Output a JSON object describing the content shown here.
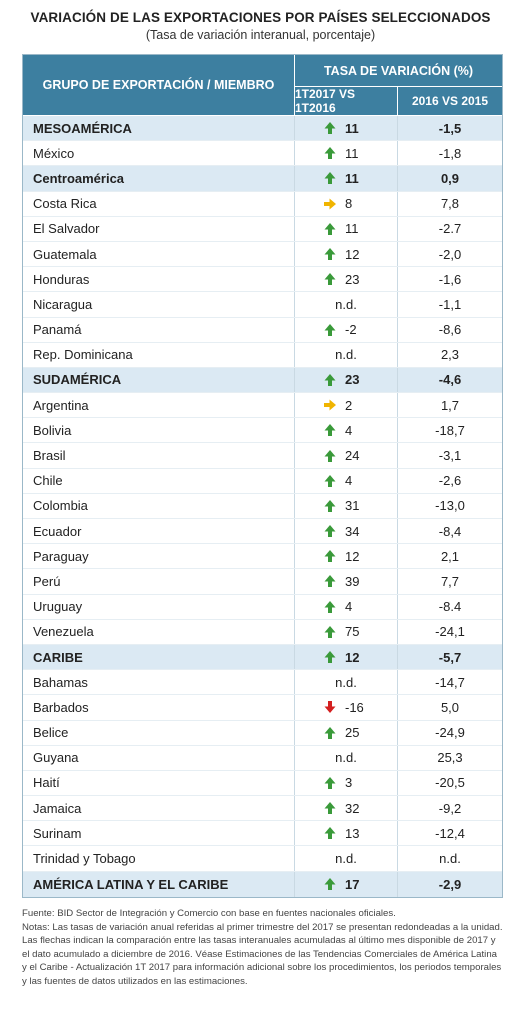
{
  "title": "VARIACIÓN DE LAS EXPORTACIONES POR PAÍSES SELECCIONADOS",
  "subtitle": "(Tasa de variación interanual, porcentaje)",
  "header": {
    "group_label": "GRUPO DE EXPORTACIÓN / MIEMBRO",
    "rate_label": "TASA DE VARIACIÓN (%)",
    "col1_label": "1T2017 VS 1T2016",
    "col2_label": "2016 VS 2015"
  },
  "colors": {
    "up": "#3a9a3a",
    "side": "#f0b400",
    "down": "#d42020",
    "header_bg": "#3d7fa0",
    "group_bg": "#dbe9f3"
  },
  "rows": [
    {
      "name": "MESOAMÉRICA",
      "group": true,
      "arrow": "up",
      "v1": "11",
      "v2": "-1,5"
    },
    {
      "name": "México",
      "group": false,
      "arrow": "up",
      "v1": "11",
      "v2": "-1,8"
    },
    {
      "name": "Centroamérica",
      "group": true,
      "arrow": "up",
      "v1": "11",
      "v2": "0,9"
    },
    {
      "name": "Costa Rica",
      "group": false,
      "arrow": "side",
      "v1": "8",
      "v2": "7,8"
    },
    {
      "name": "El Salvador",
      "group": false,
      "arrow": "up",
      "v1": "11",
      "v2": "-2.7"
    },
    {
      "name": "Guatemala",
      "group": false,
      "arrow": "up",
      "v1": "12",
      "v2": "-2,0"
    },
    {
      "name": "Honduras",
      "group": false,
      "arrow": "up",
      "v1": "23",
      "v2": "-1,6"
    },
    {
      "name": "Nicaragua",
      "group": false,
      "arrow": "none",
      "v1": "n.d.",
      "v2": "-1,1"
    },
    {
      "name": "Panamá",
      "group": false,
      "arrow": "up",
      "v1": "-2",
      "v2": "-8,6"
    },
    {
      "name": "Rep. Dominicana",
      "group": false,
      "arrow": "none",
      "v1": "n.d.",
      "v2": "2,3"
    },
    {
      "name": "SUDAMÉRICA",
      "group": true,
      "arrow": "up",
      "v1": "23",
      "v2": "-4,6"
    },
    {
      "name": "Argentina",
      "group": false,
      "arrow": "side",
      "v1": "2",
      "v2": "1,7"
    },
    {
      "name": "Bolivia",
      "group": false,
      "arrow": "up",
      "v1": "4",
      "v2": "-18,7"
    },
    {
      "name": "Brasil",
      "group": false,
      "arrow": "up",
      "v1": "24",
      "v2": "-3,1"
    },
    {
      "name": "Chile",
      "group": false,
      "arrow": "up",
      "v1": "4",
      "v2": "-2,6"
    },
    {
      "name": "Colombia",
      "group": false,
      "arrow": "up",
      "v1": "31",
      "v2": "-13,0"
    },
    {
      "name": "Ecuador",
      "group": false,
      "arrow": "up",
      "v1": "34",
      "v2": "-8,4"
    },
    {
      "name": "Paraguay",
      "group": false,
      "arrow": "up",
      "v1": "12",
      "v2": "2,1"
    },
    {
      "name": "Perú",
      "group": false,
      "arrow": "up",
      "v1": "39",
      "v2": "7,7"
    },
    {
      "name": "Uruguay",
      "group": false,
      "arrow": "up",
      "v1": "4",
      "v2": "-8.4"
    },
    {
      "name": "Venezuela",
      "group": false,
      "arrow": "up",
      "v1": "75",
      "v2": "-24,1"
    },
    {
      "name": "CARIBE",
      "group": true,
      "arrow": "up",
      "v1": "12",
      "v2": "-5,7"
    },
    {
      "name": "Bahamas",
      "group": false,
      "arrow": "none",
      "v1": "n.d.",
      "v2": "-14,7"
    },
    {
      "name": "Barbados",
      "group": false,
      "arrow": "down",
      "v1": "-16",
      "v2": "5,0"
    },
    {
      "name": "Belice",
      "group": false,
      "arrow": "up",
      "v1": "25",
      "v2": "-24,9"
    },
    {
      "name": "Guyana",
      "group": false,
      "arrow": "none",
      "v1": "n.d.",
      "v2": "25,3"
    },
    {
      "name": "Haití",
      "group": false,
      "arrow": "up",
      "v1": "3",
      "v2": "-20,5"
    },
    {
      "name": "Jamaica",
      "group": false,
      "arrow": "up",
      "v1": "32",
      "v2": "-9,2"
    },
    {
      "name": "Surinam",
      "group": false,
      "arrow": "up",
      "v1": "13",
      "v2": "-12,4"
    },
    {
      "name": "Trinidad y Tobago",
      "group": false,
      "arrow": "none",
      "v1": "n.d.",
      "v2": "n.d."
    },
    {
      "name": "AMÉRICA LATINA Y EL CARIBE",
      "group": true,
      "arrow": "up",
      "v1": "17",
      "v2": "-2,9"
    }
  ],
  "footnote": {
    "source": "Fuente: BID Sector de Integración y Comercio con base en fuentes nacionales oficiales.",
    "notes": "Notas: Las tasas de variación anual referidas al primer trimestre del 2017 se presentan redondeadas a la unidad. Las flechas indican la comparación entre las tasas interanuales acumuladas al último mes disponible de 2017 y el dato acumulado a diciembre de 2016. Véase Estimaciones de las Tendencias Comerciales de América Latina y el Caribe - Actualización 1T 2017 para información adicional sobre los procedimientos, los periodos temporales y las fuentes de datos utilizados en las estimaciones."
  }
}
